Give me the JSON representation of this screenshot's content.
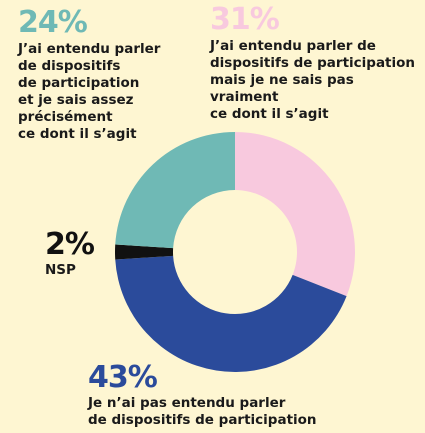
{
  "chart_data": {
    "type": "pie",
    "categories": [
      "J’ai entendu parler de\ndispositifs de participation\nmais je ne sais pas vraiment\nce dont il s’agit",
      "Je n’ai pas entendu parler\nde dispositifs de participation",
      "NSP",
      "J’ai entendu parler\nde dispositifs\nde participation\net je sais assez\nprécisément\nce dont il s’agit"
    ],
    "values": [
      31,
      43,
      2,
      24
    ],
    "value_labels": [
      "31%",
      "43%",
      "2%",
      "24%"
    ],
    "colors": [
      "#f8c9de",
      "#2b4b9b",
      "#111111",
      "#6fb9b5"
    ]
  }
}
